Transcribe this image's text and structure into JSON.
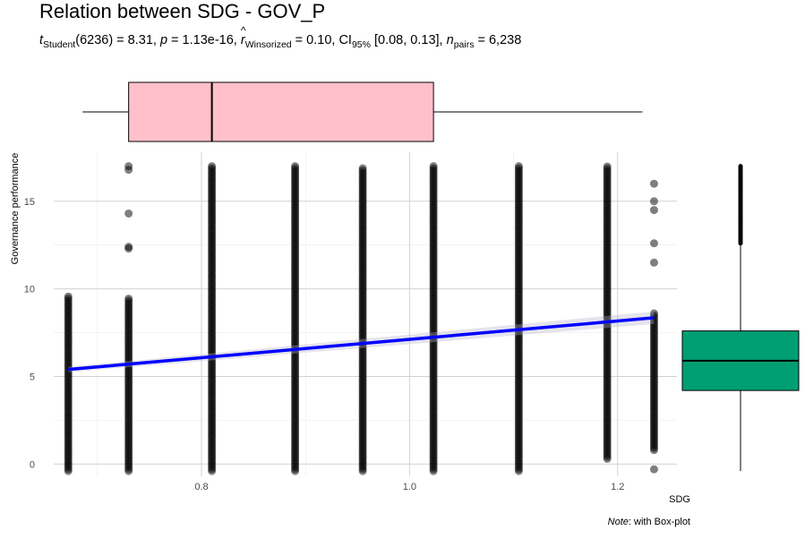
{
  "chart_data": {
    "type": "scatter",
    "title": "Relation between SDG - GOV_P",
    "subtitle": {
      "stat_prefix": "t",
      "stat_sub": "Student",
      "stat_df": "(6236) = 8.31, ",
      "p_label": "p",
      "p_value": " = 1.13e-16, ",
      "r_label": "r",
      "r_sub": "Winsorized",
      "r_value": " = 0.10, CI",
      "ci_sub": "95%",
      "ci_value": " [0.08, 0.13], ",
      "n_label": "n",
      "n_sub": "pairs",
      "n_value": " = 6,238"
    },
    "xlabel": "SDG",
    "ylabel": "Governance performance",
    "xlim": [
      0.658,
      1.257
    ],
    "ylim": [
      -0.7,
      17.8
    ],
    "x_ticks": [
      0.8,
      1.0,
      1.2
    ],
    "x_tick_labels": [
      "0.8",
      "1.0",
      "1.2"
    ],
    "x_minor_ticks": [
      0.7,
      0.9,
      1.1
    ],
    "y_ticks": [
      0,
      5,
      10,
      15
    ],
    "y_tick_labels": [
      "0",
      "5",
      "10",
      "15"
    ],
    "y_minor_ticks": [
      2.5,
      7.5,
      12.5
    ],
    "grid": true,
    "columns": [
      {
        "x": 0.672,
        "ymin": -0.4,
        "ymax": 9.6,
        "extra": []
      },
      {
        "x": 0.73,
        "ymin": -0.4,
        "ymax": 9.5,
        "extra": [
          12.3,
          12.4,
          14.3,
          16.8,
          17.0
        ]
      },
      {
        "x": 0.81,
        "ymin": -0.4,
        "ymax": 17.0,
        "extra": []
      },
      {
        "x": 0.89,
        "ymin": -0.4,
        "ymax": 17.0,
        "extra": []
      },
      {
        "x": 0.955,
        "ymin": -0.4,
        "ymax": 16.9,
        "extra": []
      },
      {
        "x": 1.023,
        "ymin": -0.4,
        "ymax": 17.0,
        "extra": []
      },
      {
        "x": 1.105,
        "ymin": -0.4,
        "ymax": 17.0,
        "extra": []
      },
      {
        "x": 1.19,
        "ymin": 0.3,
        "ymax": 17.0,
        "extra": []
      },
      {
        "x": 1.235,
        "ymin": 0.8,
        "ymax": 8.7,
        "extra": [
          -0.3,
          11.5,
          12.6,
          14.5,
          15.0,
          16.0
        ]
      }
    ],
    "regression": {
      "x": [
        0.672,
        1.235
      ],
      "y": [
        5.4,
        8.35
      ],
      "color": "#0000ff"
    },
    "x_boxplot": {
      "min": 0.672,
      "q1": 0.73,
      "median": 0.81,
      "q3": 1.023,
      "max": 1.235,
      "fill": "#ffc0cb"
    },
    "y_boxplot": {
      "min": -0.4,
      "q1": 4.2,
      "median": 5.9,
      "q3": 7.6,
      "whisker_max": 12.6,
      "outliers_max": 17.0,
      "fill": "#009e73"
    },
    "point_color": "#000000"
  },
  "caption": {
    "note_label": "Note",
    "note_text": ": with Box-plot"
  }
}
